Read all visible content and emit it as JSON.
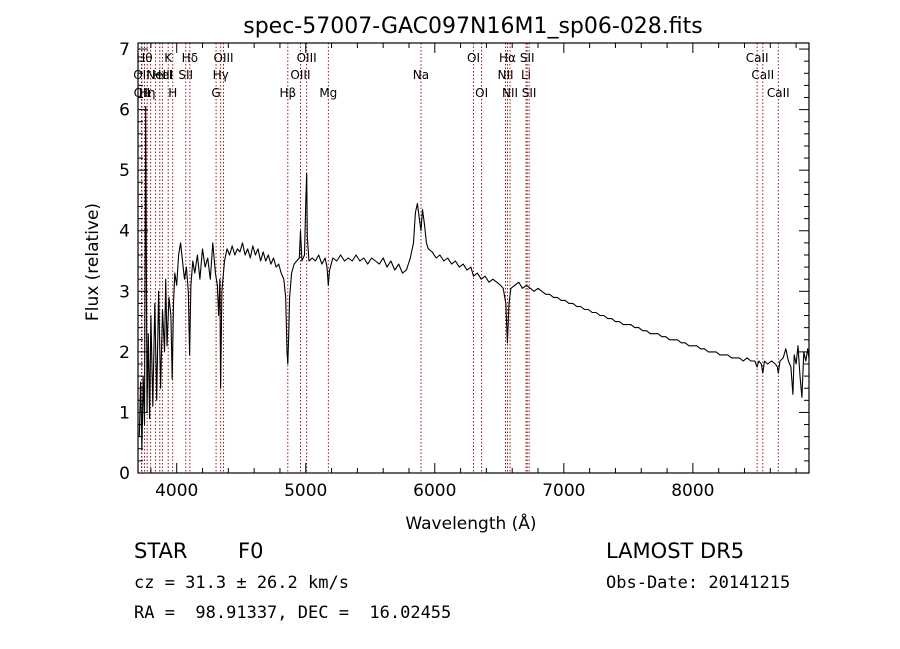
{
  "chart_data": {
    "type": "line",
    "title": "spec-57007-GAC097N16M1_sp06-028.fits",
    "xlabel": "Wavelength (Å)",
    "ylabel": "Flux (relative)",
    "xlim": [
      3700,
      8900
    ],
    "ylim": [
      0,
      7.1
    ],
    "x_ticks": [
      4000,
      5000,
      6000,
      7000,
      8000
    ],
    "x_minor_step": 200,
    "y_ticks": [
      0,
      1,
      2,
      3,
      4,
      5,
      6,
      7
    ],
    "y_minor_step": 0.2,
    "grid": false,
    "series": [
      {
        "color": "#000000",
        "points": [
          [
            3710,
            0.6
          ],
          [
            3720,
            1.5
          ],
          [
            3730,
            0.4
          ],
          [
            3740,
            1.6
          ],
          [
            3750,
            0.8
          ],
          [
            3760,
            6.05
          ],
          [
            3770,
            1.0
          ],
          [
            3780,
            2.3
          ],
          [
            3790,
            0.9
          ],
          [
            3800,
            2.6
          ],
          [
            3815,
            1.1
          ],
          [
            3830,
            2.8
          ],
          [
            3845,
            1.2
          ],
          [
            3860,
            3.0
          ],
          [
            3875,
            1.4
          ],
          [
            3890,
            2.7
          ],
          [
            3905,
            2.0
          ],
          [
            3915,
            3.2
          ],
          [
            3925,
            2.1
          ],
          [
            3940,
            2.9
          ],
          [
            3955,
            2.6
          ],
          [
            3965,
            1.55
          ],
          [
            3975,
            2.8
          ],
          [
            3985,
            3.3
          ],
          [
            4000,
            3.1
          ],
          [
            4015,
            3.6
          ],
          [
            4030,
            3.8
          ],
          [
            4045,
            3.5
          ],
          [
            4060,
            3.2
          ],
          [
            4075,
            3.4
          ],
          [
            4090,
            3.0
          ],
          [
            4100,
            1.95
          ],
          [
            4110,
            3.1
          ],
          [
            4125,
            3.5
          ],
          [
            4140,
            3.3
          ],
          [
            4160,
            3.6
          ],
          [
            4180,
            3.2
          ],
          [
            4200,
            3.7
          ],
          [
            4220,
            3.4
          ],
          [
            4240,
            3.55
          ],
          [
            4260,
            3.2
          ],
          [
            4280,
            3.8
          ],
          [
            4300,
            3.3
          ],
          [
            4315,
            3.1
          ],
          [
            4325,
            2.6
          ],
          [
            4335,
            3.2
          ],
          [
            4340,
            1.4
          ],
          [
            4350,
            3.0
          ],
          [
            4370,
            3.5
          ],
          [
            4390,
            3.7
          ],
          [
            4410,
            3.6
          ],
          [
            4430,
            3.75
          ],
          [
            4450,
            3.6
          ],
          [
            4470,
            3.7
          ],
          [
            4490,
            3.65
          ],
          [
            4510,
            3.8
          ],
          [
            4530,
            3.6
          ],
          [
            4550,
            3.7
          ],
          [
            4570,
            3.55
          ],
          [
            4590,
            3.75
          ],
          [
            4610,
            3.6
          ],
          [
            4630,
            3.7
          ],
          [
            4650,
            3.5
          ],
          [
            4670,
            3.65
          ],
          [
            4690,
            3.5
          ],
          [
            4710,
            3.6
          ],
          [
            4730,
            3.45
          ],
          [
            4750,
            3.55
          ],
          [
            4770,
            3.4
          ],
          [
            4790,
            3.45
          ],
          [
            4810,
            3.3
          ],
          [
            4830,
            3.2
          ],
          [
            4845,
            2.9
          ],
          [
            4855,
            2.0
          ],
          [
            4861,
            1.8
          ],
          [
            4867,
            2.2
          ],
          [
            4875,
            2.9
          ],
          [
            4890,
            3.3
          ],
          [
            4910,
            3.45
          ],
          [
            4930,
            3.5
          ],
          [
            4950,
            3.55
          ],
          [
            4959,
            4.0
          ],
          [
            4970,
            3.5
          ],
          [
            4990,
            3.6
          ],
          [
            5000,
            4.5
          ],
          [
            5007,
            4.95
          ],
          [
            5012,
            3.9
          ],
          [
            5025,
            3.5
          ],
          [
            5050,
            3.55
          ],
          [
            5075,
            3.5
          ],
          [
            5100,
            3.6
          ],
          [
            5125,
            3.45
          ],
          [
            5150,
            3.55
          ],
          [
            5165,
            3.4
          ],
          [
            5175,
            3.1
          ],
          [
            5185,
            3.35
          ],
          [
            5210,
            3.55
          ],
          [
            5240,
            3.5
          ],
          [
            5270,
            3.6
          ],
          [
            5300,
            3.5
          ],
          [
            5330,
            3.55
          ],
          [
            5360,
            3.5
          ],
          [
            5390,
            3.6
          ],
          [
            5420,
            3.5
          ],
          [
            5450,
            3.55
          ],
          [
            5480,
            3.45
          ],
          [
            5510,
            3.55
          ],
          [
            5540,
            3.5
          ],
          [
            5570,
            3.45
          ],
          [
            5600,
            3.55
          ],
          [
            5630,
            3.4
          ],
          [
            5660,
            3.5
          ],
          [
            5690,
            3.35
          ],
          [
            5720,
            3.45
          ],
          [
            5750,
            3.3
          ],
          [
            5780,
            3.35
          ],
          [
            5810,
            3.55
          ],
          [
            5835,
            3.8
          ],
          [
            5850,
            4.3
          ],
          [
            5865,
            4.45
          ],
          [
            5880,
            4.2
          ],
          [
            5893,
            4.0
          ],
          [
            5905,
            4.35
          ],
          [
            5920,
            4.1
          ],
          [
            5935,
            3.8
          ],
          [
            5950,
            3.7
          ],
          [
            5980,
            3.65
          ],
          [
            6010,
            3.55
          ],
          [
            6040,
            3.6
          ],
          [
            6070,
            3.5
          ],
          [
            6100,
            3.55
          ],
          [
            6130,
            3.45
          ],
          [
            6160,
            3.5
          ],
          [
            6190,
            3.4
          ],
          [
            6220,
            3.45
          ],
          [
            6250,
            3.35
          ],
          [
            6280,
            3.4
          ],
          [
            6300,
            3.25
          ],
          [
            6330,
            3.3
          ],
          [
            6360,
            3.2
          ],
          [
            6390,
            3.25
          ],
          [
            6420,
            3.15
          ],
          [
            6450,
            3.2
          ],
          [
            6480,
            3.15
          ],
          [
            6510,
            3.1
          ],
          [
            6530,
            3.05
          ],
          [
            6550,
            2.8
          ],
          [
            6563,
            2.15
          ],
          [
            6575,
            2.8
          ],
          [
            6590,
            3.05
          ],
          [
            6620,
            3.1
          ],
          [
            6650,
            3.15
          ],
          [
            6680,
            3.05
          ],
          [
            6710,
            3.1
          ],
          [
            6740,
            3.05
          ],
          [
            6770,
            3.0
          ],
          [
            6800,
            3.05
          ],
          [
            6830,
            3.0
          ],
          [
            6860,
            2.95
          ],
          [
            6890,
            2.95
          ],
          [
            6920,
            2.9
          ],
          [
            6950,
            2.9
          ],
          [
            6980,
            2.85
          ],
          [
            7010,
            2.85
          ],
          [
            7040,
            2.8
          ],
          [
            7070,
            2.8
          ],
          [
            7100,
            2.75
          ],
          [
            7130,
            2.75
          ],
          [
            7160,
            2.7
          ],
          [
            7190,
            2.7
          ],
          [
            7220,
            2.65
          ],
          [
            7250,
            2.65
          ],
          [
            7280,
            2.6
          ],
          [
            7310,
            2.6
          ],
          [
            7340,
            2.55
          ],
          [
            7370,
            2.55
          ],
          [
            7400,
            2.5
          ],
          [
            7430,
            2.5
          ],
          [
            7460,
            2.45
          ],
          [
            7490,
            2.45
          ],
          [
            7520,
            2.45
          ],
          [
            7550,
            2.4
          ],
          [
            7580,
            2.4
          ],
          [
            7610,
            2.35
          ],
          [
            7640,
            2.35
          ],
          [
            7670,
            2.3
          ],
          [
            7700,
            2.3
          ],
          [
            7730,
            2.3
          ],
          [
            7760,
            2.25
          ],
          [
            7790,
            2.25
          ],
          [
            7820,
            2.2
          ],
          [
            7850,
            2.2
          ],
          [
            7880,
            2.2
          ],
          [
            7910,
            2.15
          ],
          [
            7940,
            2.15
          ],
          [
            7970,
            2.1
          ],
          [
            8000,
            2.1
          ],
          [
            8030,
            2.1
          ],
          [
            8060,
            2.05
          ],
          [
            8090,
            2.05
          ],
          [
            8120,
            2.0
          ],
          [
            8150,
            2.0
          ],
          [
            8180,
            2.0
          ],
          [
            8210,
            1.95
          ],
          [
            8240,
            1.95
          ],
          [
            8270,
            1.95
          ],
          [
            8300,
            1.9
          ],
          [
            8330,
            1.9
          ],
          [
            8360,
            1.9
          ],
          [
            8390,
            1.85
          ],
          [
            8420,
            1.9
          ],
          [
            8450,
            1.85
          ],
          [
            8480,
            1.85
          ],
          [
            8498,
            1.75
          ],
          [
            8510,
            1.85
          ],
          [
            8530,
            1.8
          ],
          [
            8542,
            1.65
          ],
          [
            8555,
            1.85
          ],
          [
            8580,
            1.8
          ],
          [
            8610,
            1.85
          ],
          [
            8640,
            1.8
          ],
          [
            8655,
            1.75
          ],
          [
            8662,
            1.65
          ],
          [
            8675,
            1.85
          ],
          [
            8700,
            1.9
          ],
          [
            8720,
            2.05
          ],
          [
            8740,
            1.85
          ],
          [
            8760,
            1.75
          ],
          [
            8775,
            1.3
          ],
          [
            8785,
            1.95
          ],
          [
            8800,
            1.8
          ],
          [
            8815,
            2.1
          ],
          [
            8830,
            1.6
          ],
          [
            8845,
            1.25
          ],
          [
            8860,
            2.0
          ],
          [
            8875,
            1.85
          ],
          [
            8890,
            2.05
          ],
          [
            8899,
            1.9
          ]
        ]
      }
    ],
    "lines": [
      {
        "wavelength": 3727,
        "label": "OII",
        "row": 1
      },
      {
        "wavelength": 3730,
        "label": "OII",
        "row": 2
      },
      {
        "wavelength": 3750,
        "label": "Hθ",
        "row": 0
      },
      {
        "wavelength": 3771,
        "label": "Hη",
        "row": 2
      },
      {
        "wavelength": 3798,
        "label": "",
        "row": -1
      },
      {
        "wavelength": 3835,
        "label": "",
        "row": -1
      },
      {
        "wavelength": 3869,
        "label": "NeIII",
        "row": 1
      },
      {
        "wavelength": 3889,
        "label": "HeI",
        "row": 1
      },
      {
        "wavelength": 3934,
        "label": "K",
        "row": 0
      },
      {
        "wavelength": 3969,
        "label": "H",
        "row": 2
      },
      {
        "wavelength": 4070,
        "label": "SII",
        "row": 1
      },
      {
        "wavelength": 4102,
        "label": "Hδ",
        "row": 0
      },
      {
        "wavelength": 4305,
        "label": "G",
        "row": 2
      },
      {
        "wavelength": 4341,
        "label": "Hγ",
        "row": 1
      },
      {
        "wavelength": 4363,
        "label": "OIII",
        "row": 0
      },
      {
        "wavelength": 4861,
        "label": "Hβ",
        "row": 2
      },
      {
        "wavelength": 4959,
        "label": "OIII",
        "row": 1
      },
      {
        "wavelength": 5007,
        "label": "OIII",
        "row": 0
      },
      {
        "wavelength": 5175,
        "label": "Mg",
        "row": 2
      },
      {
        "wavelength": 5893,
        "label": "Na",
        "row": 1
      },
      {
        "wavelength": 6300,
        "label": "OI",
        "row": 0
      },
      {
        "wavelength": 6363,
        "label": "OI",
        "row": 2
      },
      {
        "wavelength": 6548,
        "label": "NII",
        "row": 1
      },
      {
        "wavelength": 6563,
        "label": "Hα",
        "row": 0
      },
      {
        "wavelength": 6583,
        "label": "NII",
        "row": 2
      },
      {
        "wavelength": 6707,
        "label": "Li",
        "row": 1
      },
      {
        "wavelength": 6716,
        "label": "SII",
        "row": 0
      },
      {
        "wavelength": 6731,
        "label": "SII",
        "row": 2
      },
      {
        "wavelength": 8498,
        "label": "CaII",
        "row": 0
      },
      {
        "wavelength": 8542,
        "label": "CaII",
        "row": 1
      },
      {
        "wavelength": 8662,
        "label": "CaII",
        "row": 2
      }
    ],
    "line_color": "#8b0000"
  },
  "info": {
    "obj_class": "STAR",
    "obj_subclass": "F0",
    "cz": "cz = 31.3 ± 26.2 km/s",
    "radec": "RA =  98.91337, DEC =  16.02455",
    "survey": "LAMOST DR5",
    "obs_date": "Obs-Date: 20141215"
  }
}
